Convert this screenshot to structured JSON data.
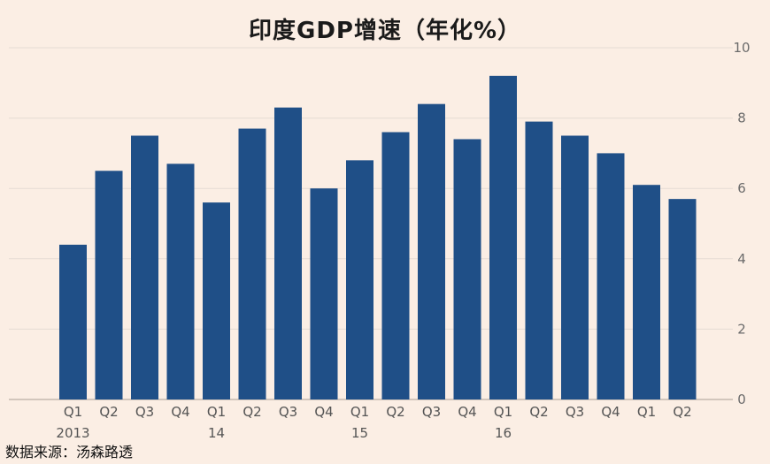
{
  "chart_data": {
    "type": "bar",
    "title": "印度GDP增速（年化%）",
    "categories": [
      "Q1",
      "Q2",
      "Q3",
      "Q4",
      "Q1",
      "Q2",
      "Q3",
      "Q4",
      "Q1",
      "Q2",
      "Q3",
      "Q4",
      "Q1",
      "Q2",
      "Q3",
      "Q4",
      "Q1",
      "Q2"
    ],
    "year_labels": [
      "2013",
      "",
      "",
      "",
      "14",
      "",
      "",
      "",
      "15",
      "",
      "",
      "",
      "16",
      "",
      "",
      "",
      "",
      ""
    ],
    "values": [
      4.4,
      6.5,
      7.5,
      6.7,
      5.6,
      7.7,
      8.3,
      6.0,
      6.8,
      7.6,
      8.4,
      7.4,
      9.2,
      7.9,
      7.5,
      7.0,
      6.1,
      5.7
    ],
    "ylim": [
      0,
      10
    ],
    "yticks": [
      0,
      2,
      4,
      6,
      8,
      10
    ],
    "xlabel": "",
    "ylabel": "",
    "grid": true,
    "bar_color": "#1f4f87"
  },
  "source_note": "数据来源：汤森路透"
}
